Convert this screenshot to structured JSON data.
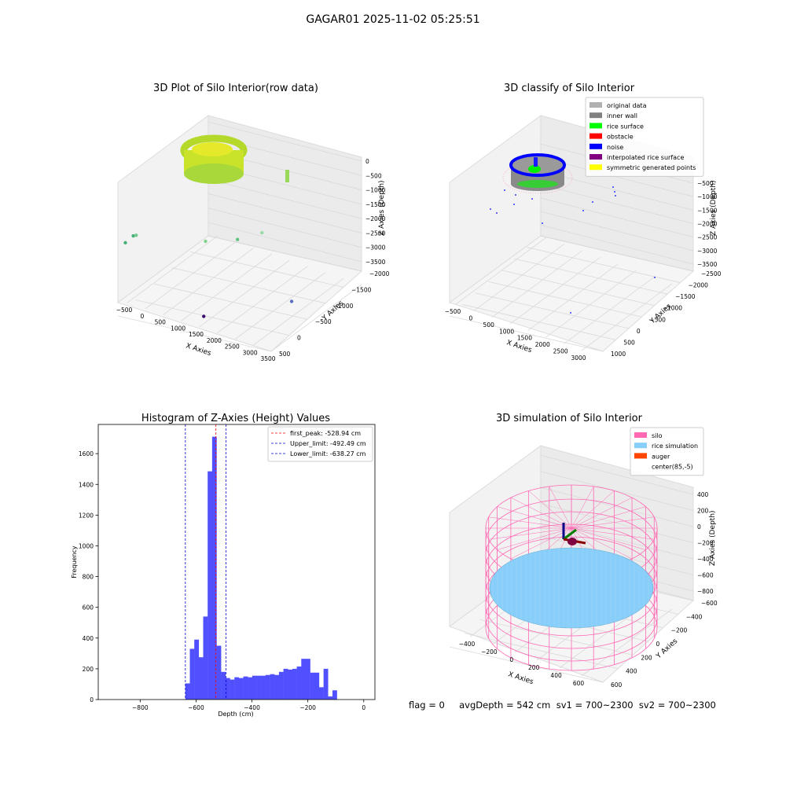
{
  "figure": {
    "suptitle": "GAGAR01 2025-11-02 05:25:51",
    "status_line": "flag = 0     avgDepth = 542 cm  sv1 = 700~2300  sv2 = 700~2300"
  },
  "colors": {
    "hist_bar": "#5050ff",
    "first_peak": "#ff0000",
    "limit": "#0000cc",
    "pane": "#f2f2f2",
    "silo": "#ff69b4",
    "rice": "#87cefa",
    "auger": "#ff4500"
  },
  "chart_data": [
    {
      "type": "scatter",
      "title": "3D Plot of Silo Interior(row data)",
      "xlabel": "X Axies",
      "ylabel": "Y Axies",
      "zlabel": "Z Axies (Depth)",
      "x_ticks": [
        "−500",
        "0",
        "500",
        "1000",
        "1500",
        "2000",
        "2500",
        "3000",
        "3500"
      ],
      "y_ticks": [
        "500",
        "0",
        "−500",
        "−1000",
        "−1500",
        "−2000"
      ],
      "z_ticks": [
        "0",
        "−500",
        "−1000",
        "−1500",
        "−2000",
        "−2500",
        "−3000",
        "−3500"
      ],
      "outliers": [
        {
          "x": 2150,
          "y": -1500,
          "z": -3500
        },
        {
          "x": 3300,
          "y": 350,
          "z": -3000
        },
        {
          "x": -450,
          "y": -900,
          "z": -1500
        },
        {
          "x": -300,
          "y": -800,
          "z": -1200
        },
        {
          "x": -150,
          "y": -900,
          "z": -1100
        },
        {
          "x": 800,
          "y": 500,
          "z": -1400
        },
        {
          "x": 1900,
          "y": 200,
          "z": -900
        },
        {
          "x": 2300,
          "y": 600,
          "z": -600
        }
      ]
    },
    {
      "type": "scatter",
      "title": "3D classify of Silo Interior",
      "xlabel": "X Axies",
      "ylabel": "Y Axies",
      "zlabel": "Z Axies (Depth)",
      "x_ticks": [
        "−500",
        "0",
        "500",
        "1000",
        "1500",
        "2000",
        "2500",
        "3000"
      ],
      "y_ticks": [
        "1000",
        "500",
        "0",
        "−500",
        "−1000",
        "−1500",
        "−2000",
        "−2500"
      ],
      "z_ticks": [
        "−500",
        "−1000",
        "−1500",
        "−2000",
        "−2500",
        "−3000",
        "−3500"
      ],
      "legend": [
        {
          "label": "original data",
          "color": "#b0b0b0"
        },
        {
          "label": "inner wall",
          "color": "#808080"
        },
        {
          "label": "rice surface",
          "color": "#00ff00"
        },
        {
          "label": "obstacle",
          "color": "#ff0000"
        },
        {
          "label": "noise",
          "color": "#0000ff"
        },
        {
          "label": "interpolated rice surface",
          "color": "#800080"
        },
        {
          "label": "symmetric generated points",
          "color": "#ffff00"
        }
      ]
    },
    {
      "type": "bar",
      "title": "Histogram of Z-Axies (Height) Values",
      "xlabel": "Depth (cm)",
      "ylabel": "Frequency",
      "xlim": [
        -950,
        40
      ],
      "ylim": [
        0,
        1790
      ],
      "x_ticks": [
        -800,
        -600,
        -400,
        -200,
        0
      ],
      "y_ticks": [
        0,
        200,
        400,
        600,
        800,
        1000,
        1200,
        1400,
        1600
      ],
      "bin_start": -638.27,
      "bin_width": 15.95,
      "values": [
        105,
        330,
        390,
        275,
        540,
        1485,
        1710,
        350,
        180,
        140,
        130,
        145,
        140,
        150,
        145,
        155,
        155,
        155,
        160,
        165,
        160,
        180,
        200,
        195,
        200,
        215,
        265,
        265,
        175,
        175,
        80,
        200,
        20,
        60
      ],
      "lines": [
        {
          "label": "first_peak: -528.94 cm",
          "x": -528.94,
          "color": "#ff0000"
        },
        {
          "label": "Upper_limit: -492.49 cm",
          "x": -492.49,
          "color": "#0000cc"
        },
        {
          "label": "Lower_limit: -638.27 cm",
          "x": -638.27,
          "color": "#0000cc"
        }
      ]
    },
    {
      "type": "scatter",
      "title": "3D simulation of Silo Interior",
      "xlabel": "X Axies",
      "ylabel": "Y Axies",
      "zlabel": "Z Axies (Depth)",
      "x_ticks": [
        "−400",
        "−200",
        "0",
        "200",
        "400",
        "600"
      ],
      "y_ticks": [
        "600",
        "400",
        "200",
        "0",
        "−200",
        "−400",
        "−600"
      ],
      "z_ticks": [
        "400",
        "200",
        "0",
        "−200",
        "−400",
        "−600",
        "−800"
      ],
      "legend": [
        {
          "label": "silo",
          "color": "#ff69b4"
        },
        {
          "label": "rice simulation",
          "color": "#87cefa"
        },
        {
          "label": "auger",
          "color": "#ff4500"
        },
        {
          "label": "center(85,-5)",
          "color": ""
        }
      ]
    }
  ]
}
